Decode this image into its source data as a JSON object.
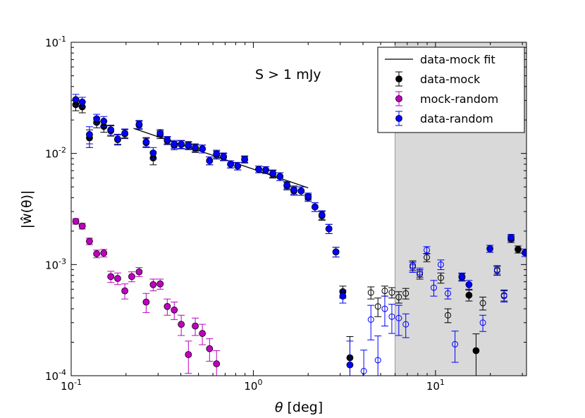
{
  "chart_data": {
    "type": "scatter",
    "title": "",
    "annotation": "S > 1 mJy",
    "xlabel_symbol": "θ",
    "xlabel_unit": " [deg]",
    "ylabel": "|ŵ(θ)|",
    "xscale": "log",
    "yscale": "log",
    "xlim": [
      0.1,
      31.6
    ],
    "ylim": [
      0.0001,
      0.1
    ],
    "xticks": [
      {
        "base": "10",
        "exp": "-1",
        "value": 0.1
      },
      {
        "base": "10",
        "exp": "0",
        "value": 1
      },
      {
        "base": "10",
        "exp": "1",
        "value": 10
      }
    ],
    "yticks": [
      {
        "base": "10",
        "exp": "-4",
        "value": 0.0001
      },
      {
        "base": "10",
        "exp": "-3",
        "value": 0.001
      },
      {
        "base": "10",
        "exp": "-2",
        "value": 0.01
      },
      {
        "base": "10",
        "exp": "-1",
        "value": 0.1
      }
    ],
    "shaded_region": {
      "x_from": 6.0,
      "x_to": 31.6,
      "color": "#d9d9d9"
    },
    "legend": {
      "position": "top-right",
      "entries": [
        {
          "label": "data-mock fit",
          "kind": "line",
          "color": "#000000"
        },
        {
          "label": "data-mock",
          "kind": "marker",
          "color": "#000000"
        },
        {
          "label": "mock-random",
          "kind": "marker",
          "color": "#bf00bf"
        },
        {
          "label": "data-random",
          "kind": "marker",
          "color": "#0000ff"
        }
      ]
    },
    "fit_line": {
      "x": [
        0.22,
        2.0
      ],
      "y": [
        0.0168,
        0.0049
      ],
      "color": "#000000"
    },
    "series": [
      {
        "name": "data-mock",
        "color": "#000000",
        "points": [
          [
            0.106,
            0.0275,
            0.0033,
            1
          ],
          [
            0.115,
            0.0262,
            0.003,
            1
          ],
          [
            0.126,
            0.0138,
            0.0025,
            1
          ],
          [
            0.138,
            0.019,
            0.002,
            1
          ],
          [
            0.151,
            0.0175,
            0.002,
            1
          ],
          [
            0.165,
            0.016,
            0.0017,
            1
          ],
          [
            0.18,
            0.0133,
            0.0014,
            1
          ],
          [
            0.197,
            0.015,
            0.0014,
            1
          ],
          [
            0.236,
            0.018,
            0.0015,
            1
          ],
          [
            0.258,
            0.0125,
            0.0012,
            1
          ],
          [
            0.282,
            0.0091,
            0.0012,
            1
          ],
          [
            0.308,
            0.0148,
            0.0012,
            1
          ],
          [
            0.337,
            0.013,
            0.001,
            1
          ],
          [
            0.368,
            0.0118,
            0.001,
            1
          ],
          [
            0.402,
            0.012,
            0.001,
            1
          ],
          [
            0.44,
            0.0117,
            0.0009,
            1
          ],
          [
            0.48,
            0.0111,
            0.0009,
            1
          ],
          [
            0.525,
            0.011,
            0.0009,
            1
          ],
          [
            0.575,
            0.0086,
            0.0007,
            1
          ],
          [
            0.628,
            0.0097,
            0.0008,
            1
          ],
          [
            0.686,
            0.0093,
            0.0007,
            1
          ],
          [
            0.75,
            0.008,
            0.0006,
            1
          ],
          [
            0.82,
            0.0077,
            0.0006,
            1
          ],
          [
            0.896,
            0.0088,
            0.0006,
            1
          ],
          [
            1.07,
            0.0072,
            0.0005,
            1
          ],
          [
            1.17,
            0.0071,
            0.0005,
            1
          ],
          [
            1.28,
            0.0065,
            0.0005,
            1
          ],
          [
            1.4,
            0.0062,
            0.0005,
            1
          ],
          [
            1.53,
            0.0051,
            0.0004,
            1
          ],
          [
            1.67,
            0.0046,
            0.0004,
            1
          ],
          [
            1.83,
            0.0046,
            0.0004,
            1
          ],
          [
            2.0,
            0.004,
            0.0003,
            1
          ],
          [
            2.18,
            0.0033,
            0.0003,
            1
          ],
          [
            2.38,
            0.00275,
            0.00025,
            1
          ],
          [
            2.6,
            0.0021,
            0.0002,
            1
          ],
          [
            2.84,
            0.0013,
            0.00013,
            1
          ],
          [
            3.1,
            0.00057,
            7e-05,
            1
          ],
          [
            3.39,
            0.000145,
            8e-05,
            1
          ],
          [
            4.42,
            0.00056,
            7e-05,
            0
          ],
          [
            4.83,
            0.00042,
            8e-05,
            0
          ],
          [
            5.27,
            0.00058,
            6e-05,
            0
          ],
          [
            5.76,
            0.00056,
            6e-05,
            0
          ],
          [
            6.29,
            0.00051,
            6e-05,
            0
          ],
          [
            6.87,
            0.00055,
            6e-05,
            0
          ],
          [
            7.5,
            0.00098,
            0.0001,
            0
          ],
          [
            8.2,
            0.00082,
            8e-05,
            0
          ],
          [
            8.96,
            0.00116,
            0.0001,
            0
          ],
          [
            10.7,
            0.00076,
            8e-05,
            0
          ],
          [
            11.7,
            0.00035,
            5e-05,
            0
          ],
          [
            13.97,
            0.00077,
            6e-05,
            1
          ],
          [
            15.27,
            0.00053,
            6e-05,
            1
          ],
          [
            16.7,
            0.000168,
            7e-05,
            1
          ],
          [
            18.2,
            0.00045,
            6e-05,
            0
          ],
          [
            19.9,
            0.00139,
            0.0001,
            0
          ],
          [
            21.8,
            0.00088,
            8e-05,
            0
          ],
          [
            23.8,
            0.00053,
            6e-05,
            0
          ],
          [
            26.0,
            0.0017,
            0.00012,
            1
          ],
          [
            28.4,
            0.00137,
            0.0001,
            1
          ]
        ]
      },
      {
        "name": "data-random",
        "color": "#0000ff",
        "points": [
          [
            0.106,
            0.0305,
            0.0035,
            1
          ],
          [
            0.115,
            0.029,
            0.003,
            1
          ],
          [
            0.126,
            0.0148,
            0.0026,
            1
          ],
          [
            0.138,
            0.0205,
            0.002,
            1
          ],
          [
            0.151,
            0.0195,
            0.002,
            1
          ],
          [
            0.165,
            0.0163,
            0.0017,
            1
          ],
          [
            0.18,
            0.0135,
            0.0014,
            1
          ],
          [
            0.197,
            0.0152,
            0.0014,
            1
          ],
          [
            0.236,
            0.0183,
            0.0015,
            1
          ],
          [
            0.258,
            0.0127,
            0.0012,
            1
          ],
          [
            0.282,
            0.0101,
            0.0012,
            1
          ],
          [
            0.308,
            0.0152,
            0.0012,
            1
          ],
          [
            0.337,
            0.0132,
            0.001,
            1
          ],
          [
            0.368,
            0.0121,
            0.001,
            1
          ],
          [
            0.402,
            0.0121,
            0.001,
            1
          ],
          [
            0.44,
            0.0119,
            0.0009,
            1
          ],
          [
            0.48,
            0.0113,
            0.0009,
            1
          ],
          [
            0.525,
            0.011,
            0.0009,
            1
          ],
          [
            0.575,
            0.0086,
            0.0007,
            1
          ],
          [
            0.628,
            0.0099,
            0.0008,
            1
          ],
          [
            0.686,
            0.0094,
            0.0007,
            1
          ],
          [
            0.75,
            0.008,
            0.0006,
            1
          ],
          [
            0.82,
            0.0077,
            0.0006,
            1
          ],
          [
            0.896,
            0.0089,
            0.0006,
            1
          ],
          [
            1.07,
            0.0072,
            0.0005,
            1
          ],
          [
            1.17,
            0.0071,
            0.0005,
            1
          ],
          [
            1.28,
            0.0066,
            0.0005,
            1
          ],
          [
            1.4,
            0.0062,
            0.0005,
            1
          ],
          [
            1.53,
            0.0052,
            0.0004,
            1
          ],
          [
            1.67,
            0.0047,
            0.0004,
            1
          ],
          [
            1.83,
            0.0046,
            0.0004,
            1
          ],
          [
            2.0,
            0.0041,
            0.0003,
            1
          ],
          [
            2.18,
            0.0033,
            0.0003,
            1
          ],
          [
            2.38,
            0.0028,
            0.00025,
            1
          ],
          [
            2.6,
            0.0021,
            0.0002,
            1
          ],
          [
            2.84,
            0.0013,
            0.00013,
            1
          ],
          [
            3.1,
            0.00052,
            7e-05,
            1
          ],
          [
            3.39,
            0.000125,
            8e-05,
            1
          ],
          [
            4.04,
            0.00011,
            6e-05,
            0
          ],
          [
            4.42,
            0.00032,
            0.00011,
            0
          ],
          [
            4.83,
            0.000138,
            9e-05,
            0
          ],
          [
            5.27,
            0.0004,
            0.00012,
            0
          ],
          [
            5.76,
            0.00034,
            0.0001,
            0
          ],
          [
            6.29,
            0.00033,
            0.0001,
            0
          ],
          [
            6.87,
            0.00029,
            7e-05,
            0
          ],
          [
            7.5,
            0.00095,
            0.0001,
            0
          ],
          [
            8.2,
            0.00085,
            8e-05,
            0
          ],
          [
            8.96,
            0.00135,
            0.0001,
            0
          ],
          [
            9.79,
            0.00062,
            0.0001,
            0
          ],
          [
            10.7,
            0.001,
            0.0001,
            0
          ],
          [
            11.7,
            0.00055,
            6e-05,
            0
          ],
          [
            12.8,
            0.000192,
            6e-05,
            0
          ],
          [
            13.97,
            0.00078,
            6e-05,
            1
          ],
          [
            15.27,
            0.00066,
            6e-05,
            1
          ],
          [
            18.2,
            0.0003,
            5e-05,
            0
          ],
          [
            19.9,
            0.00139,
            0.0001,
            1
          ],
          [
            21.8,
            0.0009,
            8e-05,
            0
          ],
          [
            23.8,
            0.00052,
            6e-05,
            0
          ],
          [
            26.0,
            0.00175,
            0.00012,
            1
          ],
          [
            31.0,
            0.00128,
            0.0001,
            1
          ]
        ]
      },
      {
        "name": "mock-random",
        "color": "#bf00bf",
        "points": [
          [
            0.106,
            0.00245,
            0.00014,
            1
          ],
          [
            0.115,
            0.00222,
            0.00013,
            1
          ],
          [
            0.126,
            0.00162,
            0.00011,
            1
          ],
          [
            0.138,
            0.00125,
            0.0001,
            1
          ],
          [
            0.151,
            0.00127,
            0.0001,
            1
          ],
          [
            0.165,
            0.00078,
            9e-05,
            1
          ],
          [
            0.18,
            0.00075,
            9e-05,
            1
          ],
          [
            0.197,
            0.00058,
            9e-05,
            1
          ],
          [
            0.215,
            0.00078,
            8e-05,
            1
          ],
          [
            0.236,
            0.00086,
            8e-05,
            1
          ],
          [
            0.258,
            0.00046,
            9e-05,
            1
          ],
          [
            0.282,
            0.00066,
            8e-05,
            1
          ],
          [
            0.308,
            0.00067,
            7e-05,
            1
          ],
          [
            0.337,
            0.00042,
            7e-05,
            1
          ],
          [
            0.368,
            0.00039,
            7e-05,
            1
          ],
          [
            0.402,
            0.00029,
            6e-05,
            1
          ],
          [
            0.44,
            0.000155,
            5e-05,
            1
          ],
          [
            0.48,
            0.00028,
            5e-05,
            1
          ],
          [
            0.525,
            0.00024,
            5e-05,
            1
          ],
          [
            0.575,
            0.000175,
            4e-05,
            1
          ],
          [
            0.628,
            0.000128,
            4e-05,
            1
          ]
        ]
      }
    ]
  }
}
